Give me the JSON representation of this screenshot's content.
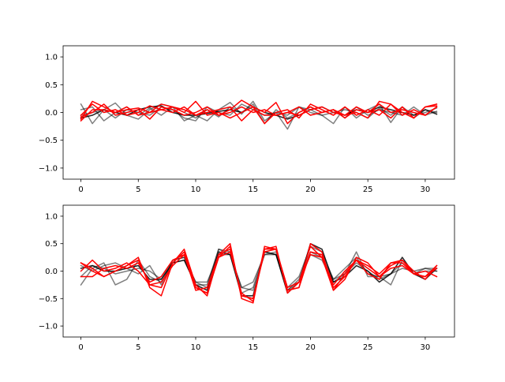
{
  "chart_data": [
    {
      "type": "line",
      "title": "",
      "xlabel": "",
      "ylabel": "",
      "xlim": [
        -1.55,
        32.55
      ],
      "ylim": [
        -1.2,
        1.2
      ],
      "xticks": [
        0,
        5,
        10,
        15,
        20,
        25,
        30
      ],
      "yticks": [
        -1.0,
        -0.5,
        0.0,
        0.5,
        1.0
      ],
      "xtick_labels": [
        "0",
        "5",
        "10",
        "15",
        "20",
        "25",
        "30"
      ],
      "ytick_labels": [
        "−1.0",
        "−0.5",
        "0.0",
        "0.5",
        "1.0"
      ],
      "grid": false,
      "x": [
        0,
        1,
        2,
        3,
        4,
        5,
        6,
        7,
        8,
        9,
        10,
        11,
        12,
        13,
        14,
        15,
        16,
        17,
        18,
        19,
        20,
        21,
        22,
        23,
        24,
        25,
        26,
        27,
        28,
        29,
        30,
        31
      ],
      "series": [
        {
          "color": "#000000",
          "opacity": 0.5,
          "values": [
            0.15,
            -0.2,
            0.05,
            0.17,
            -0.05,
            -0.12,
            0.05,
            0.15,
            0.1,
            -0.15,
            -0.05,
            -0.15,
            0.05,
            0.18,
            -0.03,
            0.2,
            -0.15,
            0.0,
            -0.3,
            0.1,
            0.0,
            -0.05,
            -0.2,
            0.1,
            -0.1,
            0.05,
            0.15,
            -0.18,
            0.1,
            -0.05,
            0.0,
            0.08
          ]
        },
        {
          "color": "#000000",
          "opacity": 0.5,
          "values": [
            0.05,
            0.1,
            -0.15,
            0.0,
            0.1,
            -0.05,
            0.08,
            -0.05,
            0.1,
            0.0,
            -0.1,
            0.05,
            -0.08,
            0.1,
            0.0,
            0.15,
            -0.2,
            0.05,
            -0.1,
            0.0,
            0.1,
            0.0,
            0.05,
            -0.1,
            0.1,
            -0.05,
            0.05,
            0.0,
            -0.05,
            0.1,
            -0.05,
            0.02
          ]
        },
        {
          "color": "#000000",
          "opacity": 0.5,
          "values": [
            -0.05,
            0.0,
            0.05,
            -0.1,
            0.05,
            0.0,
            -0.05,
            0.1,
            0.05,
            -0.1,
            -0.15,
            0.1,
            0.0,
            -0.05,
            0.15,
            0.05,
            -0.05,
            0.0,
            -0.05,
            0.1,
            0.05,
            -0.05,
            0.0,
            0.05,
            0.0,
            -0.1,
            0.08,
            -0.05,
            0.1,
            -0.1,
            0.05,
            0.0
          ]
        },
        {
          "color": "#000000",
          "opacity": 0.85,
          "values": [
            -0.1,
            -0.05,
            0.05,
            0.0,
            -0.05,
            0.05,
            0.1,
            0.12,
            0.0,
            -0.05,
            -0.05,
            -0.02,
            0.02,
            0.05,
            0.0,
            0.1,
            0.0,
            -0.05,
            -0.12,
            -0.05,
            0.05,
            0.1,
            0.0,
            -0.05,
            0.05,
            0.0,
            0.1,
            0.05,
            0.0,
            -0.05,
            0.05,
            -0.03
          ]
        },
        {
          "color": "#ff0000",
          "opacity": 1,
          "values": [
            -0.12,
            0.2,
            0.1,
            0.0,
            0.1,
            -0.05,
            0.0,
            0.15,
            0.1,
            0.0,
            0.2,
            -0.05,
            0.0,
            -0.1,
            0.0,
            0.1,
            0.0,
            0.18,
            -0.2,
            0.0,
            0.1,
            0.0,
            0.05,
            -0.05,
            0.0,
            -0.1,
            0.2,
            0.15,
            -0.05,
            0.05,
            -0.05,
            0.1
          ]
        },
        {
          "color": "#ff0000",
          "opacity": 1,
          "values": [
            -0.05,
            0.15,
            0.0,
            0.05,
            -0.05,
            0.0,
            0.12,
            0.05,
            0.0,
            0.1,
            -0.05,
            0.05,
            -0.05,
            0.05,
            0.22,
            0.1,
            -0.2,
            0.0,
            0.05,
            -0.1,
            0.15,
            0.05,
            -0.05,
            0.1,
            -0.05,
            0.05,
            -0.05,
            0.15,
            0.0,
            -0.1,
            0.1,
            0.15
          ]
        },
        {
          "color": "#ff0000",
          "opacity": 1,
          "values": [
            -0.08,
            0.0,
            0.15,
            -0.05,
            0.0,
            0.05,
            -0.12,
            0.1,
            0.05,
            -0.05,
            0.0,
            0.1,
            -0.05,
            0.0,
            0.1,
            0.0,
            0.05,
            -0.05,
            0.0,
            -0.05,
            0.05,
            0.1,
            0.0,
            -0.05,
            0.1,
            0.0,
            0.05,
            -0.1,
            0.1,
            -0.1,
            0.1,
            0.12
          ]
        },
        {
          "color": "#ff0000",
          "opacity": 1,
          "values": [
            -0.15,
            0.05,
            0.05,
            0.0,
            0.05,
            0.08,
            0.0,
            0.05,
            0.1,
            0.05,
            -0.05,
            0.0,
            0.05,
            0.1,
            -0.15,
            0.05,
            -0.05,
            -0.05,
            0.0,
            0.1,
            -0.05,
            0.0,
            0.05,
            -0.1,
            0.05,
            0.0,
            0.15,
            0.0,
            0.05,
            0.0,
            -0.05,
            0.1
          ]
        }
      ]
    },
    {
      "type": "line",
      "title": "",
      "xlabel": "",
      "ylabel": "",
      "xlim": [
        -1.55,
        32.55
      ],
      "ylim": [
        -1.2,
        1.2
      ],
      "xticks": [
        0,
        5,
        10,
        15,
        20,
        25,
        30
      ],
      "yticks": [
        -1.0,
        -0.5,
        0.0,
        0.5,
        1.0
      ],
      "xtick_labels": [
        "0",
        "5",
        "10",
        "15",
        "20",
        "25",
        "30"
      ],
      "ytick_labels": [
        "−1.0",
        "−0.5",
        "0.0",
        "0.5",
        "1.0"
      ],
      "grid": false,
      "x": [
        0,
        1,
        2,
        3,
        4,
        5,
        6,
        7,
        8,
        9,
        10,
        11,
        12,
        13,
        14,
        15,
        16,
        17,
        18,
        19,
        20,
        21,
        22,
        23,
        24,
        25,
        26,
        27,
        28,
        29,
        30,
        31
      ],
      "series": [
        {
          "color": "#000000",
          "opacity": 0.5,
          "values": [
            -0.25,
            0.05,
            0.15,
            -0.25,
            -0.15,
            0.2,
            -0.1,
            -0.2,
            0.15,
            0.2,
            -0.25,
            -0.25,
            0.4,
            0.3,
            -0.3,
            -0.2,
            0.3,
            0.35,
            -0.35,
            -0.2,
            0.3,
            0.2,
            -0.2,
            -0.05,
            0.35,
            -0.1,
            -0.1,
            -0.25,
            0.2,
            -0.05,
            0.0,
            0.0
          ]
        },
        {
          "color": "#000000",
          "opacity": 0.5,
          "values": [
            0.1,
            0.0,
            0.1,
            0.15,
            0.05,
            -0.05,
            0.1,
            -0.25,
            0.2,
            0.25,
            -0.2,
            -0.3,
            0.4,
            0.35,
            -0.4,
            -0.3,
            0.35,
            0.3,
            -0.3,
            -0.1,
            0.45,
            0.35,
            -0.15,
            0.05,
            0.25,
            -0.05,
            -0.1,
            -0.05,
            0.05,
            0.0,
            0.05,
            0.05
          ]
        },
        {
          "color": "#000000",
          "opacity": 0.5,
          "values": [
            -0.1,
            0.1,
            0.05,
            -0.05,
            0.0,
            0.05,
            0.0,
            -0.15,
            0.2,
            0.25,
            -0.2,
            -0.2,
            0.3,
            0.3,
            -0.3,
            -0.35,
            0.3,
            0.3,
            -0.35,
            -0.15,
            0.35,
            0.25,
            -0.15,
            -0.05,
            0.15,
            0.0,
            -0.15,
            -0.05,
            0.15,
            -0.05,
            0.05,
            0.0
          ]
        },
        {
          "color": "#000000",
          "opacity": 0.85,
          "values": [
            0.05,
            0.1,
            0.0,
            0.0,
            0.05,
            0.1,
            -0.15,
            -0.15,
            0.15,
            0.2,
            -0.25,
            -0.35,
            0.35,
            0.3,
            -0.45,
            -0.45,
            0.35,
            0.3,
            -0.4,
            -0.2,
            0.5,
            0.4,
            -0.2,
            -0.1,
            0.1,
            0.0,
            -0.2,
            -0.05,
            0.25,
            -0.05,
            -0.15,
            0.05
          ]
        },
        {
          "color": "#ff0000",
          "opacity": 1,
          "values": [
            0.15,
            0.05,
            -0.1,
            0.0,
            0.1,
            0.25,
            -0.3,
            -0.45,
            0.15,
            0.4,
            -0.25,
            -0.45,
            0.3,
            0.5,
            -0.5,
            -0.58,
            0.45,
            0.4,
            -0.35,
            -0.3,
            0.5,
            0.35,
            -0.35,
            -0.15,
            0.25,
            0.15,
            -0.1,
            0.1,
            0.2,
            0.0,
            -0.15,
            0.1
          ]
        },
        {
          "color": "#ff0000",
          "opacity": 1,
          "values": [
            0.0,
            0.2,
            0.0,
            0.05,
            0.15,
            0.0,
            -0.25,
            -0.3,
            0.15,
            0.35,
            -0.3,
            -0.4,
            0.25,
            0.45,
            -0.45,
            -0.5,
            0.4,
            0.45,
            -0.4,
            -0.2,
            0.45,
            0.25,
            -0.3,
            -0.1,
            0.2,
            -0.05,
            -0.15,
            0.15,
            0.15,
            -0.05,
            -0.1,
            0.05
          ]
        },
        {
          "color": "#ff0000",
          "opacity": 1,
          "values": [
            -0.1,
            -0.1,
            0.05,
            0.1,
            0.05,
            0.15,
            -0.2,
            -0.1,
            0.2,
            0.3,
            -0.35,
            -0.3,
            0.3,
            0.4,
            -0.45,
            -0.5,
            0.35,
            0.4,
            -0.35,
            -0.3,
            0.35,
            0.3,
            -0.25,
            0.0,
            0.2,
            0.1,
            -0.05,
            0.15,
            0.2,
            -0.05,
            -0.1,
            0.1
          ]
        },
        {
          "color": "#ff0000",
          "opacity": 1,
          "values": [
            0.15,
            0.0,
            -0.1,
            0.0,
            0.1,
            0.2,
            -0.25,
            -0.2,
            0.1,
            0.3,
            -0.3,
            -0.4,
            0.25,
            0.35,
            -0.4,
            -0.55,
            0.4,
            0.4,
            -0.3,
            -0.2,
            0.3,
            0.25,
            -0.35,
            -0.05,
            0.2,
            0.05,
            -0.1,
            0.05,
            0.1,
            -0.05,
            0.0,
            -0.1
          ]
        }
      ]
    }
  ]
}
